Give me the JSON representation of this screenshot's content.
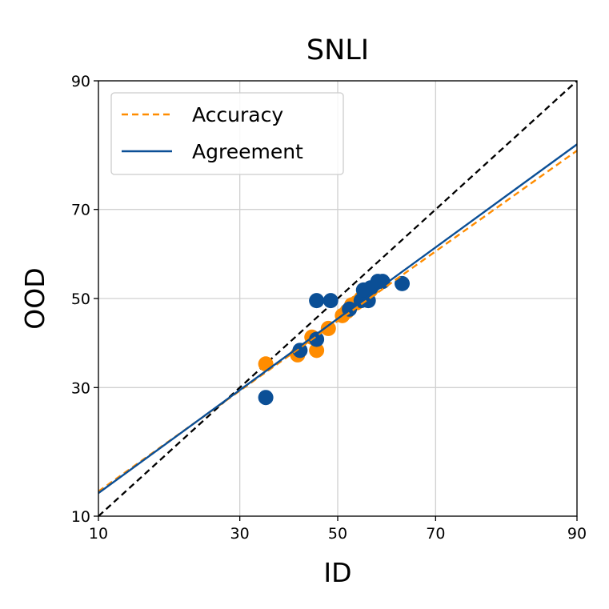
{
  "chart_data": {
    "type": "scatter",
    "title": "SNLI",
    "xlabel": "ID",
    "ylabel": "OOD",
    "xlim": [
      10,
      90
    ],
    "ylim": [
      10,
      90
    ],
    "scale": "probit",
    "xticks": [
      10,
      30,
      50,
      70,
      90
    ],
    "yticks": [
      10,
      30,
      50,
      70,
      90
    ],
    "grid": true,
    "legend": {
      "placement": "top-left",
      "entries": [
        {
          "label": "Accuracy",
          "style": "dashed",
          "color": "#ff8c00"
        },
        {
          "label": "Agreement",
          "style": "solid",
          "color": "#0b4f96"
        }
      ]
    },
    "diagonal": {
      "style": "dashed",
      "color": "#000000"
    },
    "series": [
      {
        "name": "Accuracy",
        "color": "#ff8c00",
        "fit_line": {
          "x": [
            10,
            90
          ],
          "y": [
            12.8,
            80.8
          ]
        },
        "points": [
          {
            "x": 35.0,
            "y": 35.0
          },
          {
            "x": 41.5,
            "y": 37.0
          },
          {
            "x": 44.5,
            "y": 41.0
          },
          {
            "x": 45.5,
            "y": 38.0
          },
          {
            "x": 48.0,
            "y": 43.0
          },
          {
            "x": 51.0,
            "y": 46.0
          },
          {
            "x": 52.0,
            "y": 47.0
          },
          {
            "x": 53.0,
            "y": 48.5
          },
          {
            "x": 54.0,
            "y": 49.0
          },
          {
            "x": 55.0,
            "y": 50.0
          },
          {
            "x": 56.0,
            "y": 51.0
          },
          {
            "x": 57.0,
            "y": 52.0
          }
        ]
      },
      {
        "name": "Agreement",
        "color": "#0b4f96",
        "fit_line": {
          "x": [
            10,
            90
          ],
          "y": [
            12.6,
            81.8
          ]
        },
        "points": [
          {
            "x": 35.0,
            "y": 28.0
          },
          {
            "x": 42.0,
            "y": 38.0
          },
          {
            "x": 45.5,
            "y": 40.5
          },
          {
            "x": 45.5,
            "y": 49.5
          },
          {
            "x": 48.5,
            "y": 49.5
          },
          {
            "x": 52.5,
            "y": 47.5
          },
          {
            "x": 55.0,
            "y": 49.5
          },
          {
            "x": 56.5,
            "y": 49.5
          },
          {
            "x": 55.5,
            "y": 52.0
          },
          {
            "x": 57.0,
            "y": 52.5
          },
          {
            "x": 58.5,
            "y": 54.0
          },
          {
            "x": 59.5,
            "y": 54.0
          },
          {
            "x": 63.5,
            "y": 53.5
          }
        ]
      }
    ]
  }
}
